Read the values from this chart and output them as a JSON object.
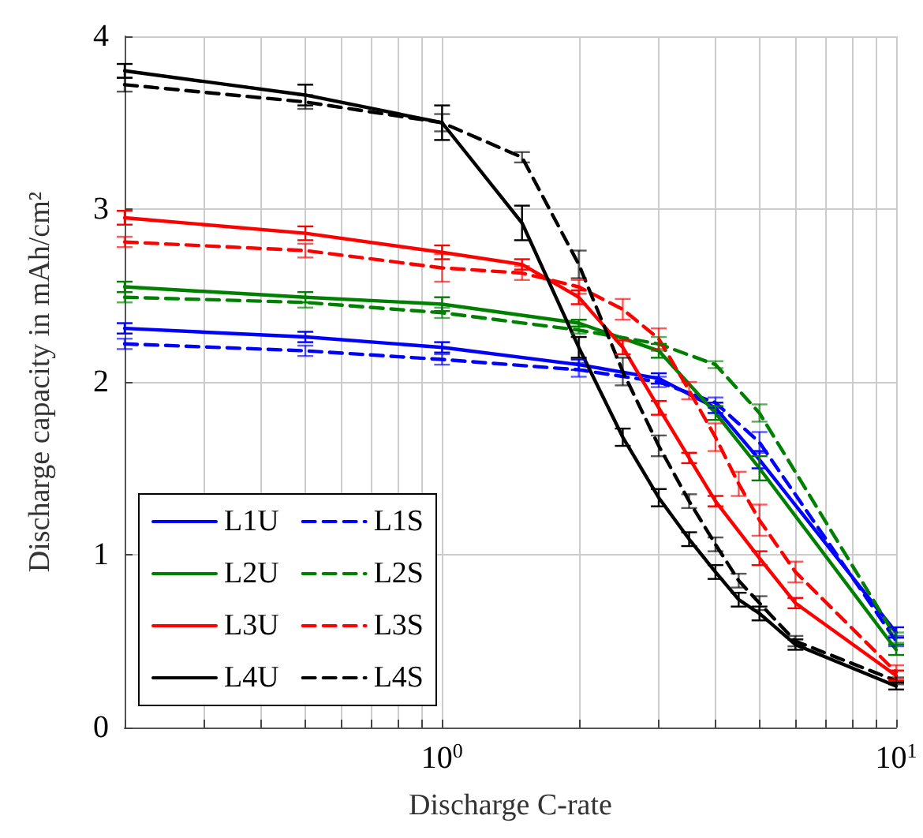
{
  "chart_data": {
    "type": "line",
    "xlabel": "Discharge C-rate",
    "ylabel": "Discharge capacity in mAh/cm²",
    "log": "x",
    "xlim": [
      0.2,
      10
    ],
    "ylim": [
      0,
      4
    ],
    "xticks": [
      {
        "value": 0.2,
        "label": null
      },
      {
        "value": 0.3,
        "label": null
      },
      {
        "value": 0.4,
        "label": null
      },
      {
        "value": 0.5,
        "label": null
      },
      {
        "value": 0.6,
        "label": null
      },
      {
        "value": 0.7,
        "label": null
      },
      {
        "value": 0.8,
        "label": null
      },
      {
        "value": 0.9,
        "label": null
      },
      {
        "value": 1,
        "label": "10$^{0}$"
      },
      {
        "value": 2,
        "label": null
      },
      {
        "value": 3,
        "label": null
      },
      {
        "value": 4,
        "label": null
      },
      {
        "value": 5,
        "label": null
      },
      {
        "value": 6,
        "label": null
      },
      {
        "value": 7,
        "label": null
      },
      {
        "value": 8,
        "label": null
      },
      {
        "value": 9,
        "label": null
      },
      {
        "value": 10,
        "label": "10$^{1}$"
      }
    ],
    "yticks": [
      0,
      1,
      2,
      3,
      4
    ],
    "grid": true,
    "legend": "bottom left",
    "marker": "none",
    "series": [
      {
        "name": "L1U",
        "color": "#0000ff",
        "line_style": "solid",
        "x": [
          0.2,
          0.5,
          1,
          2,
          3,
          4,
          5,
          10
        ],
        "values": [
          2.31,
          2.26,
          2.2,
          2.1,
          2.02,
          1.85,
          1.55,
          0.55
        ],
        "errors": [
          0.03,
          0.03,
          0.03,
          0.03,
          0.03,
          0.03,
          0.05,
          0.03
        ]
      },
      {
        "name": "L1S",
        "color": "#0000ff",
        "line_style": "dashed",
        "x": [
          0.2,
          0.5,
          1,
          2,
          3,
          4,
          5,
          10
        ],
        "values": [
          2.22,
          2.18,
          2.13,
          2.07,
          2.0,
          1.88,
          1.65,
          0.5
        ],
        "errors": [
          0.03,
          0.03,
          0.03,
          0.04,
          0.03,
          0.03,
          0.06,
          0.03
        ]
      },
      {
        "name": "L2U",
        "color": "#008000",
        "line_style": "solid",
        "x": [
          0.2,
          0.5,
          1,
          2,
          3,
          4,
          5,
          10
        ],
        "values": [
          2.55,
          2.49,
          2.45,
          2.34,
          2.18,
          1.82,
          1.5,
          0.45
        ],
        "errors": [
          0.03,
          0.03,
          0.04,
          0.02,
          0.04,
          0.04,
          0.07,
          0.03
        ]
      },
      {
        "name": "L2S",
        "color": "#008000",
        "line_style": "dashed",
        "x": [
          0.2,
          0.5,
          1,
          2,
          3,
          4,
          5,
          10
        ],
        "values": [
          2.49,
          2.46,
          2.4,
          2.3,
          2.22,
          2.1,
          1.82,
          0.52
        ],
        "errors": [
          0.03,
          0.03,
          0.03,
          0.02,
          0.04,
          0.02,
          0.05,
          0.03
        ]
      },
      {
        "name": "L3U",
        "color": "#ff0000",
        "line_style": "solid",
        "x": [
          0.2,
          0.5,
          1,
          1.5,
          2,
          2.5,
          3,
          3.5,
          4,
          5,
          6,
          10
        ],
        "values": [
          2.95,
          2.86,
          2.75,
          2.68,
          2.49,
          2.2,
          1.85,
          1.56,
          1.31,
          0.98,
          0.72,
          0.3
        ],
        "errors": [
          0.04,
          0.04,
          0.04,
          0.03,
          0.04,
          0.04,
          0.04,
          0.03,
          0.03,
          0.04,
          0.03,
          0.03
        ]
      },
      {
        "name": "L3S",
        "color": "#ff0000",
        "line_style": "dashed",
        "x": [
          0.2,
          0.5,
          1,
          1.5,
          2,
          2.5,
          3,
          3.5,
          4,
          4.5,
          5,
          6,
          10
        ],
        "values": [
          2.81,
          2.76,
          2.66,
          2.63,
          2.55,
          2.42,
          2.25,
          1.95,
          1.68,
          1.41,
          1.2,
          0.9,
          0.32
        ],
        "errors": [
          0.03,
          0.04,
          0.08,
          0.04,
          0.04,
          0.06,
          0.06,
          0.05,
          0.08,
          0.07,
          0.09,
          0.06,
          0.04
        ]
      },
      {
        "name": "L4U",
        "color": "#000000",
        "line_style": "solid",
        "x": [
          0.2,
          0.5,
          1,
          1.5,
          2,
          2.5,
          3,
          3.5,
          4,
          4.5,
          5,
          6,
          10
        ],
        "values": [
          3.8,
          3.66,
          3.5,
          2.92,
          2.2,
          1.68,
          1.33,
          1.09,
          0.9,
          0.74,
          0.66,
          0.48,
          0.24
        ],
        "errors": [
          0.04,
          0.06,
          0.1,
          0.1,
          0.06,
          0.05,
          0.05,
          0.04,
          0.04,
          0.04,
          0.04,
          0.03,
          0.02
        ]
      },
      {
        "name": "L4S",
        "color": "#000000",
        "line_style": "dashed",
        "x": [
          0.2,
          0.5,
          1,
          1.5,
          2,
          2.5,
          3,
          3.5,
          4,
          4.5,
          5,
          6,
          10
        ],
        "values": [
          3.72,
          3.62,
          3.5,
          3.3,
          2.68,
          2.06,
          1.63,
          1.31,
          1.06,
          0.85,
          0.72,
          0.5,
          0.27
        ],
        "errors": [
          0.04,
          0.04,
          0.05,
          0.03,
          0.08,
          0.08,
          0.06,
          0.04,
          0.04,
          0.04,
          0.04,
          0.03,
          0.02
        ]
      }
    ]
  }
}
